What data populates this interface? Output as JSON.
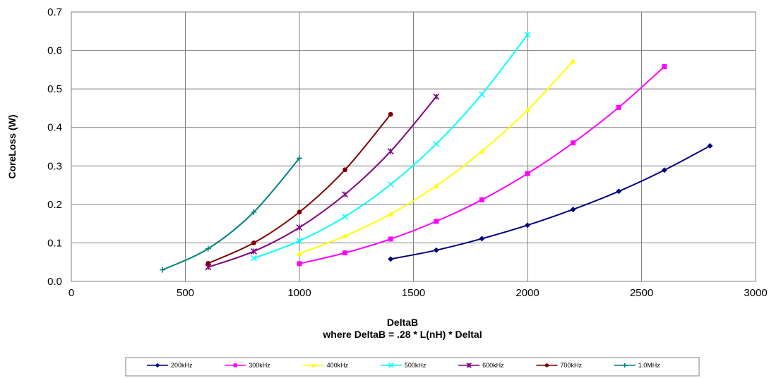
{
  "chart_data": {
    "type": "line",
    "title": "",
    "xlabel": "DeltaB",
    "xlabel_sub": "where DeltaB = .28 * L(nH) * DeltaI",
    "ylabel": "CoreLoss (W)",
    "xlim": [
      0,
      3000
    ],
    "ylim": [
      0,
      0.7
    ],
    "x_ticks": [
      0,
      500,
      1000,
      1500,
      2000,
      2500,
      3000
    ],
    "y_ticks": [
      0.0,
      0.1,
      0.2,
      0.3,
      0.4,
      0.5,
      0.6,
      0.7
    ],
    "x_tick_labels": [
      "0",
      "500",
      "1000",
      "1500",
      "2000",
      "2500",
      "3000"
    ],
    "y_tick_labels": [
      "0.0",
      "0.1",
      "0.2",
      "0.3",
      "0.4",
      "0.5",
      "0.6",
      "0.7"
    ],
    "grid": true,
    "legend_position": "bottom",
    "series": [
      {
        "name": "200kHz",
        "color": "#000080",
        "marker": "diamond",
        "x": [
          1400,
          1600,
          1800,
          2000,
          2200,
          2400,
          2600,
          2800
        ],
        "y": [
          0.058,
          0.081,
          0.111,
          0.146,
          0.187,
          0.234,
          0.289,
          0.352
        ]
      },
      {
        "name": "300kHz",
        "color": "#ff00ff",
        "marker": "square",
        "x": [
          1000,
          1200,
          1400,
          1600,
          1800,
          2000,
          2200,
          2400,
          2600
        ],
        "y": [
          0.046,
          0.074,
          0.11,
          0.156,
          0.212,
          0.28,
          0.36,
          0.452,
          0.558
        ]
      },
      {
        "name": "400kHz",
        "color": "#ffff00",
        "marker": "triangle",
        "x": [
          1000,
          1200,
          1400,
          1600,
          1800,
          2000,
          2200
        ],
        "y": [
          0.072,
          0.118,
          0.175,
          0.248,
          0.338,
          0.445,
          0.572
        ]
      },
      {
        "name": "500kHz",
        "color": "#00ffff",
        "marker": "x",
        "x": [
          800,
          1000,
          1200,
          1400,
          1600,
          1800,
          2000
        ],
        "y": [
          0.06,
          0.105,
          0.168,
          0.252,
          0.357,
          0.486,
          0.641
        ]
      },
      {
        "name": "600kHz",
        "color": "#800080",
        "marker": "star",
        "x": [
          600,
          800,
          1000,
          1200,
          1400,
          1600
        ],
        "y": [
          0.037,
          0.078,
          0.14,
          0.226,
          0.338,
          0.48
        ]
      },
      {
        "name": "700kHz",
        "color": "#800000",
        "marker": "circle",
        "x": [
          600,
          800,
          1000,
          1200,
          1400
        ],
        "y": [
          0.047,
          0.1,
          0.18,
          0.29,
          0.434
        ]
      },
      {
        "name": "1.0MHz",
        "color": "#008080",
        "marker": "plus",
        "x": [
          400,
          600,
          800,
          1000
        ],
        "y": [
          0.03,
          0.085,
          0.18,
          0.32
        ]
      }
    ]
  }
}
